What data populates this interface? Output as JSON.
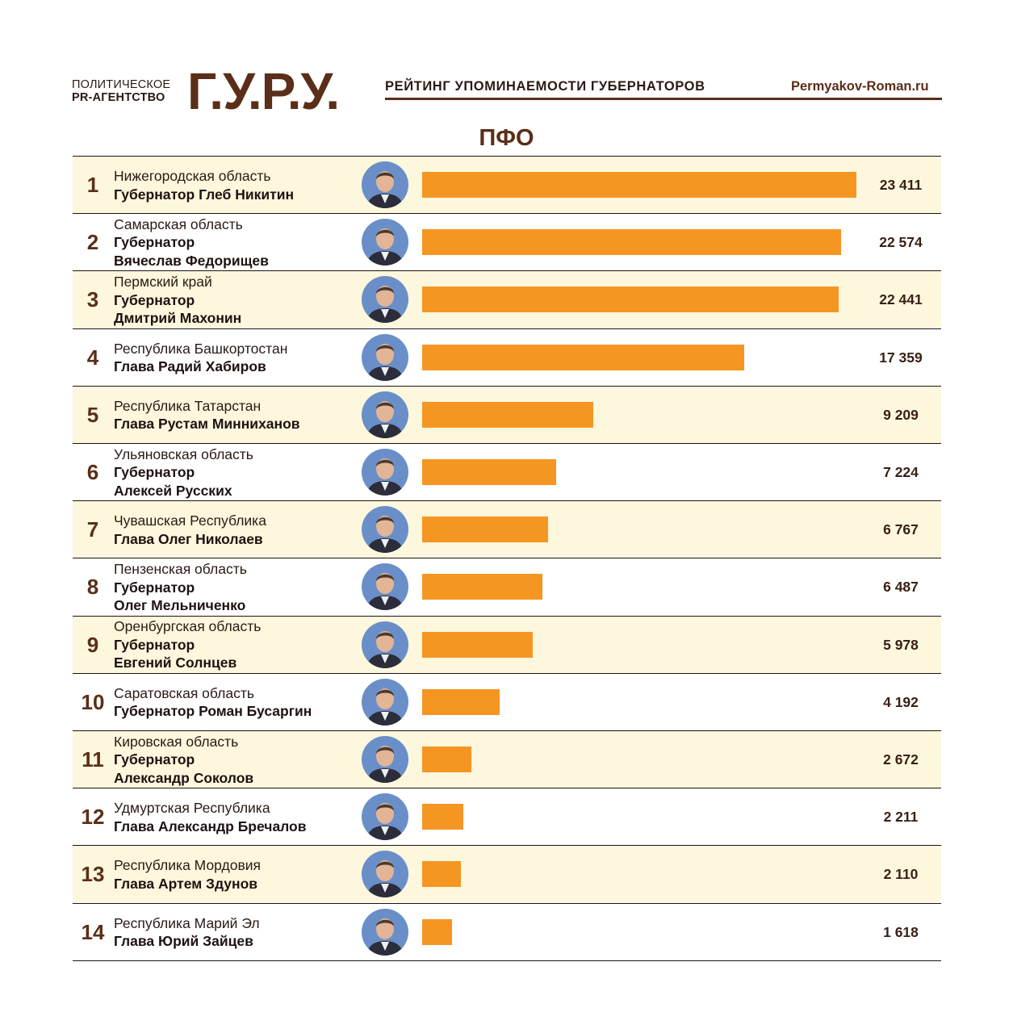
{
  "header": {
    "agency_line1": "ПОЛИТИЧЕСКОЕ",
    "agency_line2": "PR-АГЕНТСТВО",
    "logo": "Г.У.Р.У.",
    "rating_title": "РЕЙТИНГ УПОМИНАЕМОСТИ ГУБЕРНАТОРОВ",
    "site": "Permyakov-Roman.ru"
  },
  "region": "ПФО",
  "colors": {
    "bar": "#f59623",
    "brown": "#5a2e18",
    "alt_row": "#fdf7dd",
    "avatar_bg": "#6a8fc8"
  },
  "chart_data": {
    "type": "bar",
    "orientation": "horizontal",
    "title": "ПФО",
    "xlim": [
      0,
      23411
    ],
    "categories": [
      "Нижегородская область",
      "Самарская область",
      "Пермский край",
      "Республика Башкортостан",
      "Республика Татарстан",
      "Ульяновская область",
      "Чувашская Республика",
      "Пензенская область",
      "Оренбургская область",
      "Саратовская область",
      "Кировская область",
      "Удмуртская Республика",
      "Республика Мордовия",
      "Республика Марий Эл"
    ],
    "values": [
      23411,
      22574,
      22441,
      17359,
      9209,
      7224,
      6767,
      6487,
      5978,
      4192,
      2672,
      2211,
      2110,
      1618
    ],
    "rows": [
      {
        "rank": "1",
        "region": "Нижегородская область",
        "person": "Губернатор Глеб Никитин",
        "value": 23411,
        "value_label": "23 411"
      },
      {
        "rank": "2",
        "region": "Самарская область",
        "person": "Губернатор\nВячеслав Федорищев",
        "value": 22574,
        "value_label": "22 574"
      },
      {
        "rank": "3",
        "region": "Пермский край",
        "person": "Губернатор\nДмитрий Махонин",
        "value": 22441,
        "value_label": "22 441"
      },
      {
        "rank": "4",
        "region": "Республика Башкортостан",
        "person": "Глава Радий Хабиров",
        "value": 17359,
        "value_label": "17 359"
      },
      {
        "rank": "5",
        "region": "Республика Татарстан",
        "person": "Глава Рустам Минниханов",
        "value": 9209,
        "value_label": "9 209"
      },
      {
        "rank": "6",
        "region": "Ульяновская область",
        "person": "Губернатор\nАлексей Русских",
        "value": 7224,
        "value_label": "7 224"
      },
      {
        "rank": "7",
        "region": "Чувашская Республика",
        "person": "Глава Олег Николаев",
        "value": 6767,
        "value_label": "6 767"
      },
      {
        "rank": "8",
        "region": "Пензенская область",
        "person": "Губернатор\nОлег Мельниченко",
        "value": 6487,
        "value_label": "6 487"
      },
      {
        "rank": "9",
        "region": "Оренбургская область",
        "person": "Губернатор\nЕвгений Солнцев",
        "value": 5978,
        "value_label": "5 978"
      },
      {
        "rank": "10",
        "region": "Саратовская область",
        "person": "Губернатор Роман Бусаргин",
        "value": 4192,
        "value_label": "4 192"
      },
      {
        "rank": "11",
        "region": "Кировская область",
        "person": "Губернатор\nАлександр Соколов",
        "value": 2672,
        "value_label": "2 672"
      },
      {
        "rank": "12",
        "region": "Удмуртская Республика",
        "person": "Глава Александр Бречалов",
        "value": 2211,
        "value_label": "2 211"
      },
      {
        "rank": "13",
        "region": "Республика Мордовия",
        "person": "Глава Артем Здунов",
        "value": 2110,
        "value_label": "2 110"
      },
      {
        "rank": "14",
        "region": "Республика Марий Эл",
        "person": "Глава Юрий Зайцев",
        "value": 1618,
        "value_label": "1 618"
      }
    ]
  }
}
